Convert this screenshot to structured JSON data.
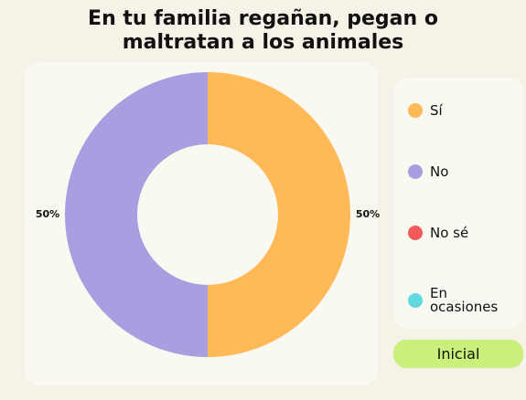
{
  "chart_data": {
    "type": "pie",
    "title": "En tu familia regañan, pegan o maltratan a los animales",
    "categories": [
      "Sí",
      "No",
      "No sé",
      "En ocasiones"
    ],
    "values": [
      50,
      50,
      0,
      0
    ],
    "value_labels": [
      "50%",
      "50%",
      null,
      null
    ],
    "colors": [
      "#ffb957",
      "#a89ee0",
      "#f25a5a",
      "#5fd8e0"
    ],
    "donut": true
  },
  "button": {
    "label": "Inicial"
  }
}
